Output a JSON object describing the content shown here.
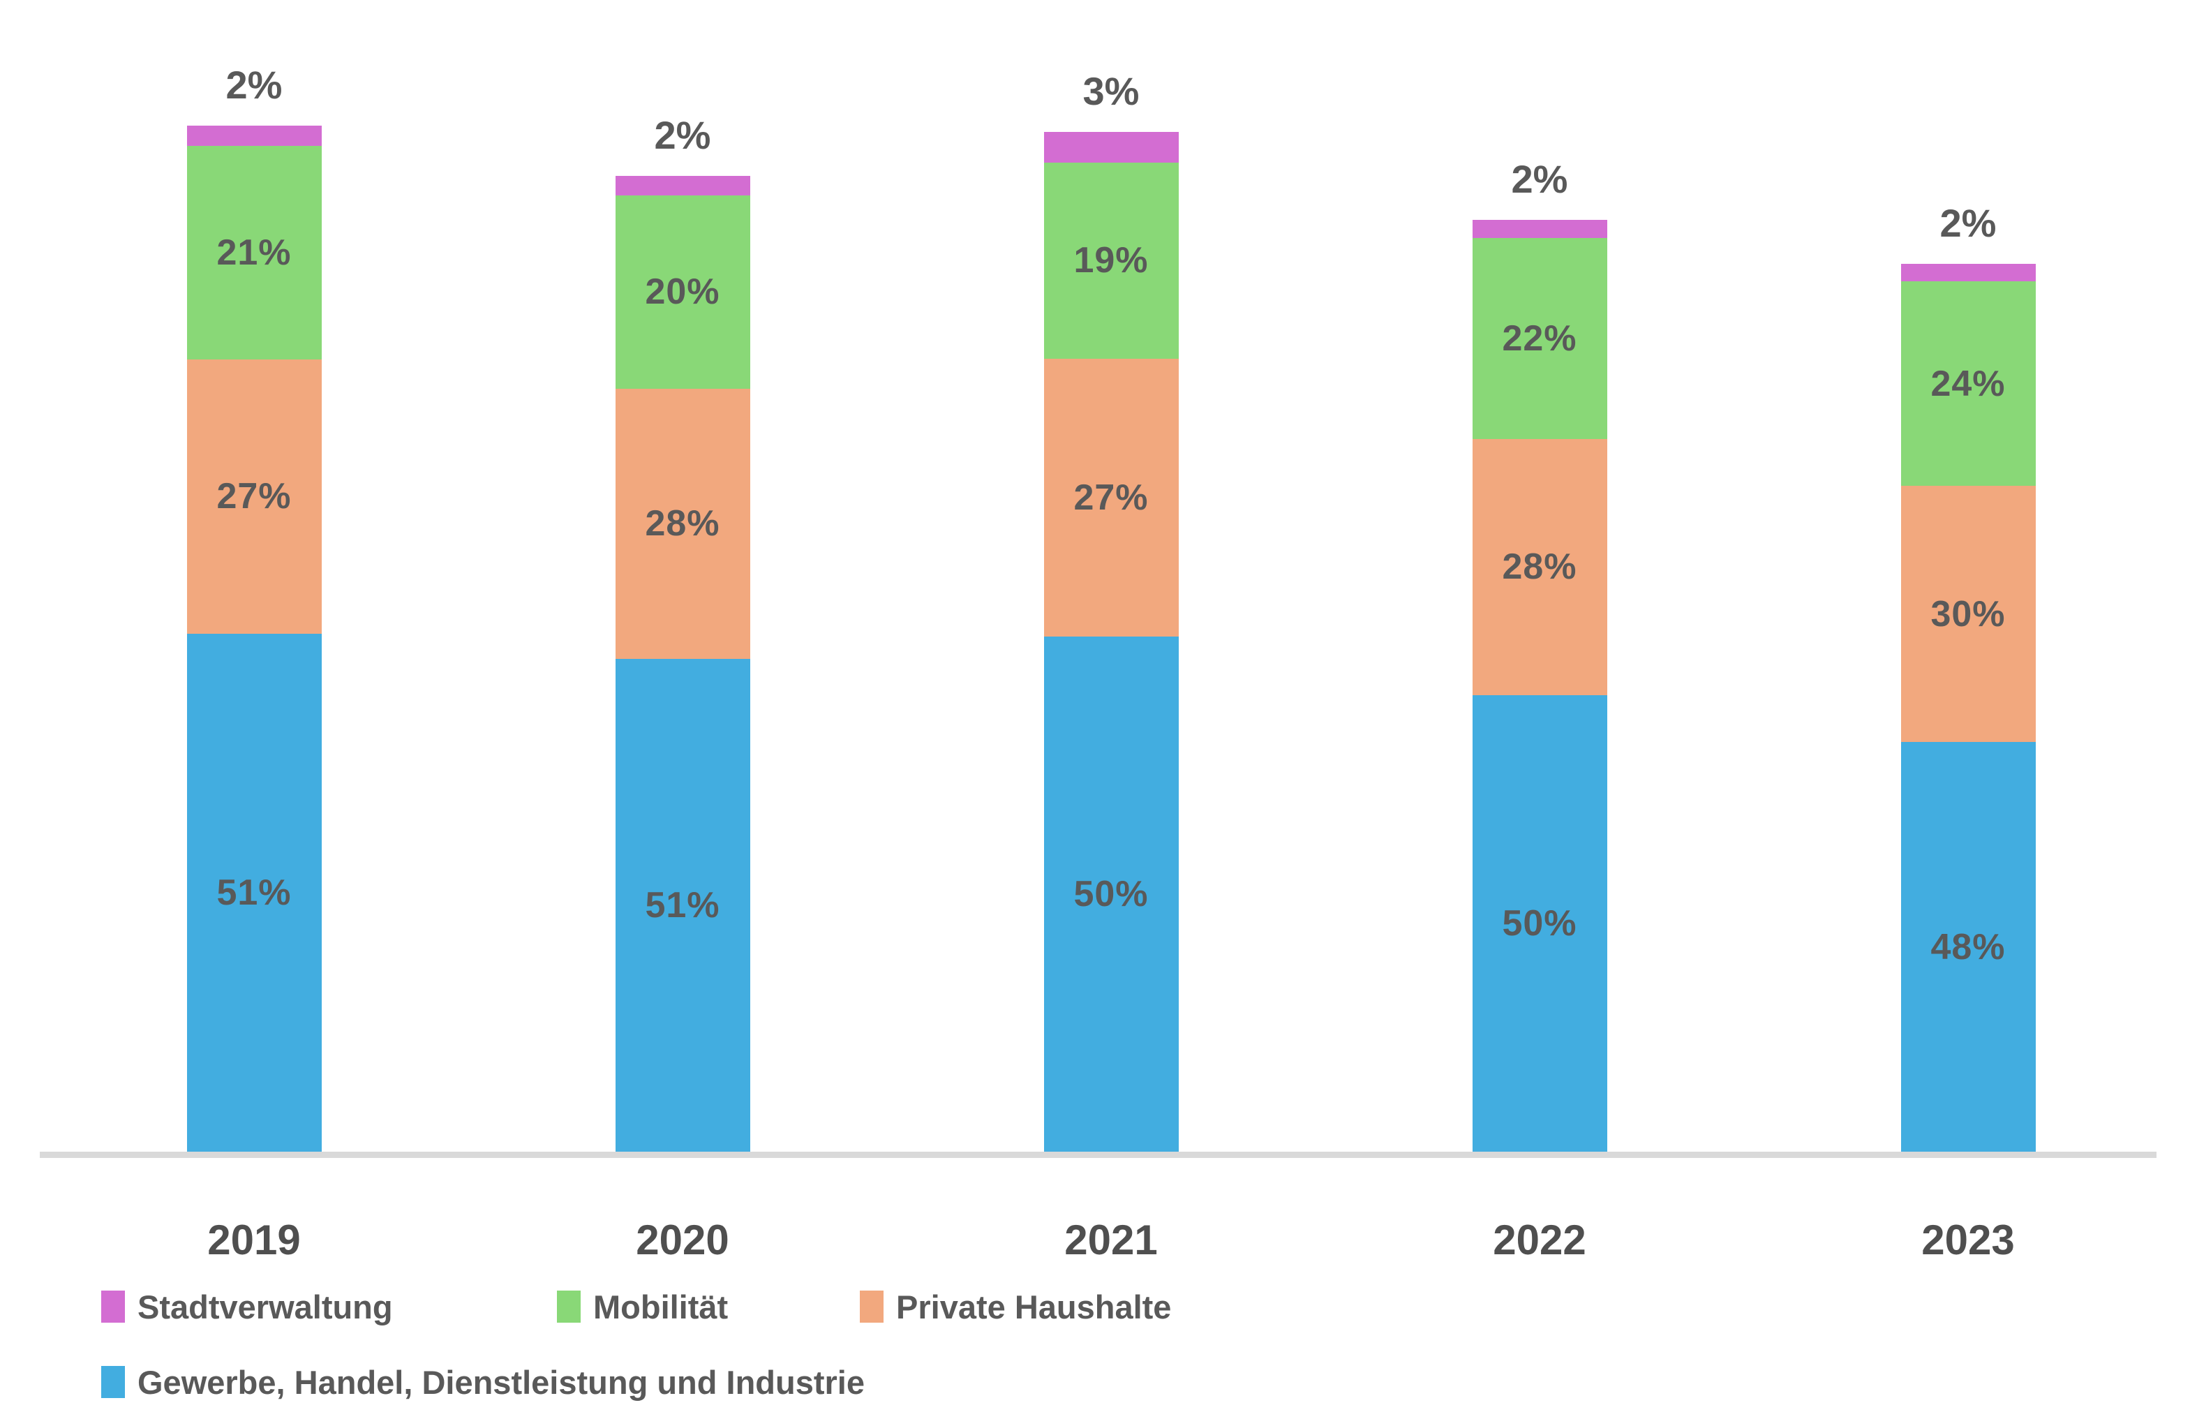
{
  "chart_data": {
    "type": "bar",
    "stacked": true,
    "orientation": "vertical",
    "categories": [
      "2019",
      "2020",
      "2021",
      "2022",
      "2023"
    ],
    "series": [
      {
        "name": "Stadtverwaltung",
        "color": "#d36dd2",
        "values": [
          2,
          2,
          3,
          2,
          2
        ],
        "label_position": "above"
      },
      {
        "name": "Mobilität",
        "color": "#89d877",
        "values": [
          21,
          20,
          19,
          22,
          24
        ],
        "label_position": "center"
      },
      {
        "name": "Private Haushalte",
        "color": "#f2a87e",
        "values": [
          27,
          28,
          27,
          28,
          30
        ],
        "label_position": "center"
      },
      {
        "name": "Gewerbe, Handel, Dienstleistung und Industrie",
        "color": "#42ade0",
        "values": [
          51,
          51,
          50,
          50,
          48
        ],
        "label_position": "center"
      }
    ],
    "value_suffix": "%",
    "bar_total_height_fraction": [
      1.0,
      0.951,
      0.994,
      0.908,
      0.865
    ],
    "data_label_color": "#595959",
    "x_axis_label_color": "#4f4f4f",
    "axis_line_color": "#d9d9d9",
    "background_color": "#ffffff",
    "gridlines": false,
    "y_axis_visible": false,
    "legend_position": "bottom",
    "legend_rows": [
      [
        "Stadtverwaltung",
        "Mobilität",
        "Private Haushalte"
      ],
      [
        "Gewerbe, Handel, Dienstleistung und Industrie"
      ]
    ]
  }
}
